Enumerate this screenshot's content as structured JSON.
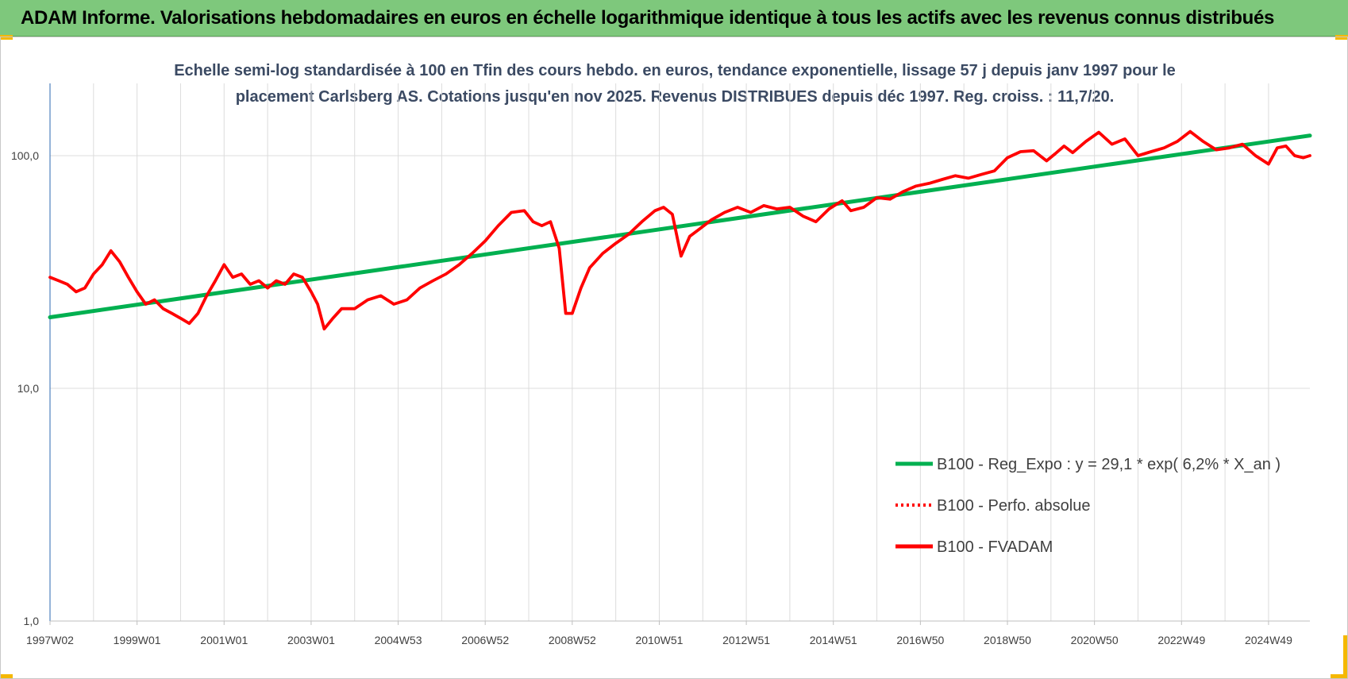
{
  "banner": {
    "title": "ADAM Informe. Valorisations hebdomadaires en euros en échelle logarithmique identique à tous les actifs avec les revenus connus distribués"
  },
  "colors": {
    "banner_bg": "#7ec87c",
    "accent_corner": "#f5b800",
    "series_regression": "#00b050",
    "series_fvadam": "#ff0000",
    "title_text": "#3b4a63"
  },
  "chart_data": {
    "type": "line",
    "title_lines": [
      "Echelle semi-log standardisée à 100 en Tfin des cours hebdo. en euros, tendance exponentielle, lissage 57 j depuis janv 1997 pour le",
      "placement Carlsberg AS. Cotations jusqu'en nov 2025. Revenus DISTRIBUES depuis déc 1997. Reg. croiss. : 11,7/20."
    ],
    "y_scale": "log",
    "ylim": [
      1,
      200
    ],
    "xlim": [
      1997.0,
      2025.95
    ],
    "grid": true,
    "legend_position": "bottom-right",
    "y_tick_labels": [
      {
        "value": 100,
        "label": "100,0"
      },
      {
        "value": 10,
        "label": "10,0"
      },
      {
        "value": 1,
        "label": "1,0"
      }
    ],
    "x_tick_labels": [
      {
        "x": 1997.0,
        "label": "1997W02"
      },
      {
        "x": 1999.0,
        "label": "1999W01"
      },
      {
        "x": 2001.0,
        "label": "2001W01"
      },
      {
        "x": 2003.0,
        "label": "2003W01"
      },
      {
        "x": 2005.0,
        "label": "2004W53"
      },
      {
        "x": 2007.0,
        "label": "2006W52"
      },
      {
        "x": 2009.0,
        "label": "2008W52"
      },
      {
        "x": 2011.0,
        "label": "2010W51"
      },
      {
        "x": 2013.0,
        "label": "2012W51"
      },
      {
        "x": 2015.0,
        "label": "2014W51"
      },
      {
        "x": 2017.0,
        "label": "2016W50"
      },
      {
        "x": 2019.0,
        "label": "2018W50"
      },
      {
        "x": 2021.0,
        "label": "2020W50"
      },
      {
        "x": 2023.0,
        "label": "2022W49"
      },
      {
        "x": 2025.0,
        "label": "2024W49"
      }
    ],
    "series": [
      {
        "name": "B100 - Reg_Expo : y = 29,1 * exp( 6,2% *  X_an )",
        "style": "solid",
        "color": "#00b050",
        "x": [
          1997.0,
          2025.95
        ],
        "y": [
          20.2,
          122
        ]
      },
      {
        "name": "B100 - Perfo. absolue",
        "style": "dotted",
        "color": "#ff0000",
        "x": [],
        "y": []
      },
      {
        "name": "B100 - FVADAM",
        "style": "solid",
        "color": "#ff0000",
        "x": [
          1997.0,
          1997.2,
          1997.4,
          1997.6,
          1997.8,
          1998.0,
          1998.2,
          1998.4,
          1998.6,
          1998.8,
          1999.0,
          1999.2,
          1999.4,
          1999.6,
          1999.8,
          2000.0,
          2000.2,
          2000.4,
          2000.6,
          2000.8,
          2001.0,
          2001.2,
          2001.4,
          2001.6,
          2001.8,
          2002.0,
          2002.2,
          2002.4,
          2002.6,
          2002.8,
          2003.0,
          2003.15,
          2003.3,
          2003.5,
          2003.7,
          2004.0,
          2004.3,
          2004.6,
          2004.9,
          2005.2,
          2005.5,
          2005.8,
          2006.1,
          2006.4,
          2006.7,
          2007.0,
          2007.3,
          2007.6,
          2007.9,
          2008.1,
          2008.3,
          2008.5,
          2008.7,
          2008.85,
          2009.0,
          2009.2,
          2009.4,
          2009.7,
          2010.0,
          2010.3,
          2010.6,
          2010.9,
          2011.1,
          2011.3,
          2011.5,
          2011.7,
          2011.9,
          2012.2,
          2012.5,
          2012.8,
          2013.1,
          2013.4,
          2013.7,
          2014.0,
          2014.3,
          2014.6,
          2014.9,
          2015.2,
          2015.4,
          2015.7,
          2016.0,
          2016.3,
          2016.6,
          2016.9,
          2017.2,
          2017.5,
          2017.8,
          2018.1,
          2018.4,
          2018.7,
          2019.0,
          2019.3,
          2019.6,
          2019.9,
          2020.1,
          2020.3,
          2020.5,
          2020.8,
          2021.1,
          2021.4,
          2021.7,
          2022.0,
          2022.3,
          2022.6,
          2022.9,
          2023.2,
          2023.5,
          2023.8,
          2024.1,
          2024.4,
          2024.7,
          2025.0,
          2025.2,
          2025.4,
          2025.6,
          2025.8,
          2025.95
        ],
        "y": [
          30,
          29,
          28,
          26,
          27,
          31,
          34,
          39,
          35,
          30,
          26,
          23,
          24,
          22,
          21,
          20,
          19,
          21,
          25,
          29,
          34,
          30,
          31,
          28,
          29,
          27,
          29,
          28,
          31,
          30,
          26,
          23,
          18,
          20,
          22,
          22,
          24,
          25,
          23,
          24,
          27,
          29,
          31,
          34,
          38,
          43,
          50,
          57,
          58,
          52,
          50,
          52,
          40,
          21,
          21,
          27,
          33,
          38,
          42,
          46,
          52,
          58,
          60,
          56,
          37,
          45,
          48,
          53,
          57,
          60,
          57,
          61,
          59,
          60,
          55,
          52,
          59,
          64,
          58,
          60,
          66,
          65,
          70,
          74,
          76,
          79,
          82,
          80,
          83,
          86,
          98,
          104,
          105,
          95,
          102,
          110,
          103,
          115,
          126,
          112,
          118,
          100,
          104,
          108,
          115,
          127,
          115,
          106,
          108,
          112,
          100,
          92,
          108,
          110,
          100,
          98,
          100
        ]
      }
    ]
  }
}
